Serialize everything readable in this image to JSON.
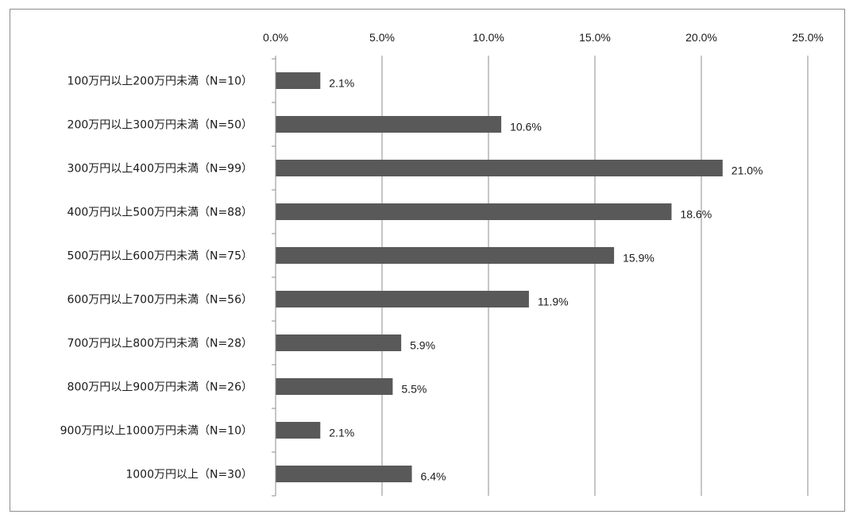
{
  "chart_data": {
    "type": "bar",
    "orientation": "horizontal",
    "title": "",
    "xlabel": "",
    "ylabel": "",
    "xlim": [
      0,
      25
    ],
    "x_ticks": [
      "0.0%",
      "5.0%",
      "10.0%",
      "15.0%",
      "20.0%",
      "25.0%"
    ],
    "x_tick_values": [
      0,
      5,
      10,
      15,
      20,
      25
    ],
    "x_axis_position": "top",
    "grid": true,
    "legend": "none",
    "bar_color": "#595959",
    "categories": [
      "100万円以上200万円未満（N=10）",
      "200万円以上300万円未満（N=50）",
      "300万円以上400万円未満（N=99）",
      "400万円以上500万円未満（N=88）",
      "500万円以上600万円未満（N=75）",
      "600万円以上700万円未満（N=56）",
      "700万円以上800万円未満（N=28）",
      "800万円以上900万円未満（N=26）",
      "900万円以上1000万円未満（N=10）",
      "1000万円以上（N=30）"
    ],
    "values": [
      2.1,
      10.6,
      21.0,
      18.6,
      15.9,
      11.9,
      5.9,
      5.5,
      2.1,
      6.4
    ],
    "value_labels": [
      "2.1%",
      "10.6%",
      "21.0%",
      "18.6%",
      "15.9%",
      "11.9%",
      "5.9%",
      "5.5%",
      "2.1%",
      "6.4%"
    ]
  }
}
